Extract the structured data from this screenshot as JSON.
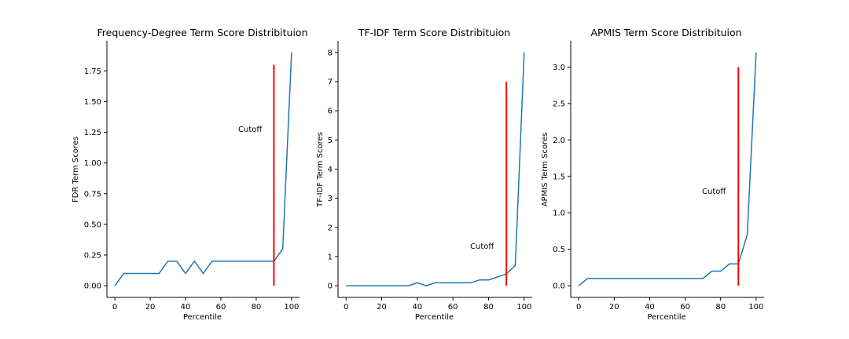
{
  "colors": {
    "series": "#1f77b4",
    "cutoff": "#ff0000",
    "axis": "#000000"
  },
  "chart_data": [
    {
      "type": "line",
      "title": "Frequency-Degree Term Score Distribituion",
      "xlabel": "Percentile",
      "ylabel": "FDR Term Scores",
      "xlim": [
        -4.5,
        104.5
      ],
      "ylim": [
        -0.095,
        1.995
      ],
      "xticks": [
        0,
        20,
        40,
        60,
        80,
        100
      ],
      "yticks": [
        0.0,
        0.25,
        0.5,
        0.75,
        1.0,
        1.25,
        1.5,
        1.75
      ],
      "ytick_labels": [
        "0.00",
        "0.25",
        "0.50",
        "0.75",
        "1.00",
        "1.25",
        "1.50",
        "1.75"
      ],
      "x": [
        0,
        5,
        10,
        15,
        20,
        25,
        30,
        35,
        40,
        45,
        50,
        55,
        60,
        65,
        70,
        75,
        80,
        85,
        90,
        95,
        100
      ],
      "y": [
        0.0,
        0.1,
        0.1,
        0.1,
        0.1,
        0.1,
        0.2,
        0.2,
        0.1,
        0.2,
        0.1,
        0.2,
        0.2,
        0.2,
        0.2,
        0.2,
        0.2,
        0.2,
        0.2,
        0.3,
        1.9
      ],
      "cutoff": {
        "x": 90,
        "y_from": 0.0,
        "y_to": 1.8
      },
      "annotation": {
        "text": "Cutoff",
        "x": 70,
        "y": 1.25
      },
      "grid": false
    },
    {
      "type": "line",
      "title": "TF-IDF Term Score Distribituion",
      "xlabel": "Percentile",
      "ylabel": "TF-IDF Term Scores",
      "xlim": [
        -4.5,
        104.5
      ],
      "ylim": [
        -0.4,
        8.4
      ],
      "xticks": [
        0,
        20,
        40,
        60,
        80,
        100
      ],
      "yticks": [
        0,
        1,
        2,
        3,
        4,
        5,
        6,
        7,
        8
      ],
      "ytick_labels": [
        "0",
        "1",
        "2",
        "3",
        "4",
        "5",
        "6",
        "7",
        "8"
      ],
      "x": [
        0,
        5,
        10,
        15,
        20,
        25,
        30,
        35,
        40,
        45,
        50,
        55,
        60,
        65,
        70,
        75,
        80,
        85,
        90,
        95,
        100
      ],
      "y": [
        0.0,
        0.0,
        0.0,
        0.0,
        0.0,
        0.0,
        0.0,
        0.0,
        0.1,
        0.0,
        0.1,
        0.1,
        0.1,
        0.1,
        0.1,
        0.2,
        0.2,
        0.3,
        0.4,
        0.7,
        8.0
      ],
      "cutoff": {
        "x": 90,
        "y_from": 0.0,
        "y_to": 7.0
      },
      "annotation": {
        "text": "Cutoff",
        "x": 70,
        "y": 1.25
      },
      "grid": false
    },
    {
      "type": "line",
      "title": "APMIS Term Score Distribituion",
      "xlabel": "Percentile",
      "ylabel": "APMIS Term Scores",
      "xlim": [
        -4.5,
        104.5
      ],
      "ylim": [
        -0.16,
        3.36
      ],
      "xticks": [
        0,
        20,
        40,
        60,
        80,
        100
      ],
      "yticks": [
        0.0,
        0.5,
        1.0,
        1.5,
        2.0,
        2.5,
        3.0
      ],
      "ytick_labels": [
        "0.0",
        "0.5",
        "1.0",
        "1.5",
        "2.0",
        "2.5",
        "3.0"
      ],
      "x": [
        0,
        5,
        10,
        15,
        20,
        25,
        30,
        35,
        40,
        45,
        50,
        55,
        60,
        65,
        70,
        75,
        80,
        85,
        90,
        95,
        100
      ],
      "y": [
        0.0,
        0.1,
        0.1,
        0.1,
        0.1,
        0.1,
        0.1,
        0.1,
        0.1,
        0.1,
        0.1,
        0.1,
        0.1,
        0.1,
        0.1,
        0.2,
        0.2,
        0.3,
        0.3,
        0.7,
        3.2
      ],
      "cutoff": {
        "x": 90,
        "y_from": 0.0,
        "y_to": 3.0
      },
      "annotation": {
        "text": "Cutoff",
        "x": 70,
        "y": 1.25
      },
      "grid": false
    }
  ]
}
